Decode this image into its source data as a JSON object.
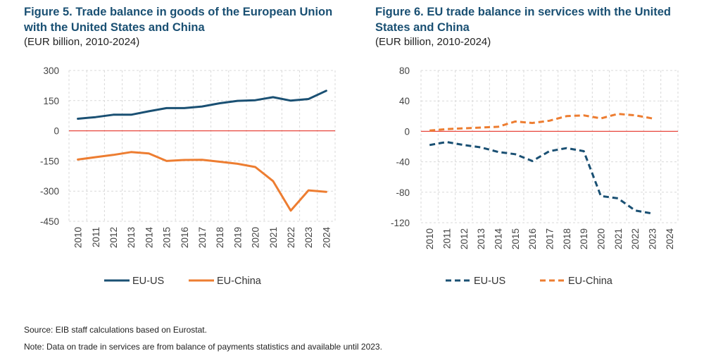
{
  "figure5": {
    "title": "Figure 5. Trade balance in goods of the European Union with the United States and China",
    "subtitle": "(EUR billion, 2010-2024)"
  },
  "figure6": {
    "title": "Figure 6. EU trade balance in services with the United States and China",
    "subtitle": "(EUR billion, 2010-2024)"
  },
  "footer": {
    "source": "Source: EIB staff calculations based on Eurostat.",
    "note": "Note: Data on trade in services are from balance of payments statistics and available until 2023."
  },
  "colors": {
    "us": "#1a5073",
    "china": "#ed7d31",
    "zero": "#e8463c",
    "grid": "#d9d9d9"
  },
  "chart_data": [
    {
      "type": "line",
      "title": "Figure 5. Trade balance in goods of the European Union with the United States and China",
      "x": [
        "2010",
        "2011",
        "2012",
        "2013",
        "2014",
        "2015",
        "2016",
        "2017",
        "2018",
        "2019",
        "2020",
        "2021",
        "2022",
        "2023",
        "2024"
      ],
      "series": [
        {
          "name": "EU-US",
          "style": "solid",
          "values": [
            60,
            68,
            80,
            80,
            97,
            113,
            113,
            121,
            137,
            149,
            152,
            167,
            150,
            158,
            199
          ]
        },
        {
          "name": "EU-China",
          "style": "solid",
          "values": [
            -143,
            -131,
            -120,
            -106,
            -113,
            -150,
            -145,
            -144,
            -154,
            -164,
            -180,
            -250,
            -397,
            -296,
            -304
          ]
        }
      ],
      "ylim": [
        -450,
        300
      ],
      "yticks": [
        300,
        150,
        0,
        -150,
        -300,
        -450
      ],
      "xlabel": "",
      "ylabel": "",
      "legend": [
        "EU-US",
        "EU-China"
      ]
    },
    {
      "type": "line",
      "title": "Figure 6. EU trade balance in services with the United States and China",
      "x": [
        "2010",
        "2011",
        "2012",
        "2013",
        "2014",
        "2015",
        "2016",
        "2017",
        "2018",
        "2019",
        "2020",
        "2021",
        "2022",
        "2023",
        "2024"
      ],
      "series": [
        {
          "name": "EU-US",
          "style": "dashed",
          "values": [
            -18,
            -14,
            -18,
            -21,
            -27,
            -30,
            -39,
            -26,
            -22,
            -26,
            -85,
            -88,
            -104,
            -108,
            null
          ]
        },
        {
          "name": "EU-China",
          "style": "dashed",
          "values": [
            1,
            3,
            4,
            5,
            6,
            13,
            11,
            14,
            20,
            21,
            17,
            23,
            21,
            17,
            null
          ]
        }
      ],
      "ylim": [
        -120,
        80
      ],
      "yticks": [
        80,
        40,
        0,
        -40,
        -80,
        -120
      ],
      "xlabel": "",
      "ylabel": "",
      "legend": [
        "EU-US",
        "EU-China"
      ]
    }
  ]
}
